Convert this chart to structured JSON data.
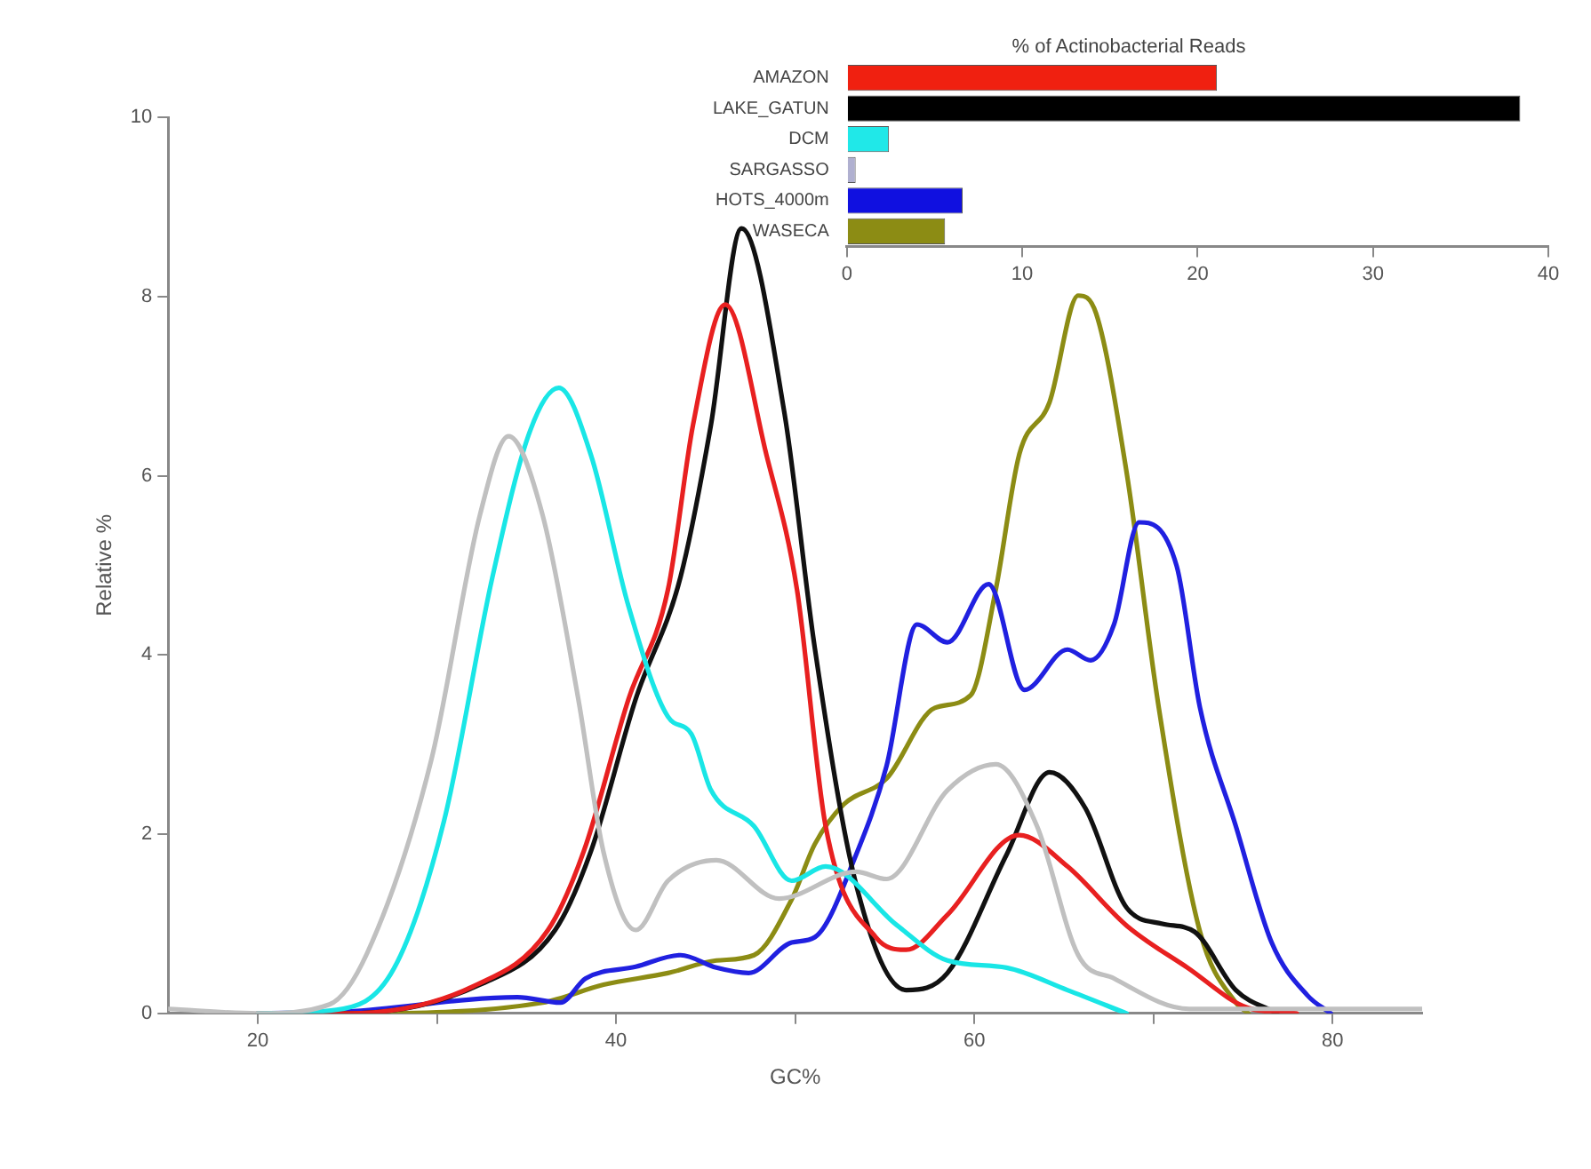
{
  "chart_data": [
    {
      "type": "line",
      "xlabel": "GC%",
      "ylabel": "Relative %",
      "xlim": [
        15,
        85
      ],
      "ylim": [
        0,
        10
      ],
      "xticks": [
        20,
        {
          "value": 30,
          "label": null
        },
        40,
        {
          "value": 50,
          "label": null
        },
        60,
        {
          "value": 70,
          "label": null
        },
        80
      ],
      "yticks": [
        0,
        2,
        4,
        6,
        8,
        10
      ],
      "series": [
        {
          "color": "#c0c0c0",
          "x": [
            15,
            20,
            24,
            26.1,
            29.7,
            32.4,
            34,
            35.9,
            37.9,
            39.3,
            41.1,
            42.9,
            45.6,
            49.1,
            53.4,
            55.1,
            58.5,
            61.2,
            63.5,
            65.8,
            67.8,
            72,
            85
          ],
          "values": [
            0.05,
            0,
            0.1,
            0.67,
            2.84,
            5.56,
            6.44,
            5.56,
            3.5,
            1.8,
            0.93,
            1.48,
            1.71,
            1.28,
            1.58,
            1.5,
            2.49,
            2.78,
            2.09,
            0.65,
            0.39,
            0.05,
            0.05
          ]
        },
        {
          "color": "#19e6e6",
          "x": [
            20,
            24.4,
            27.6,
            30.4,
            33.1,
            35.2,
            36.8,
            38.6,
            40.7,
            42.9,
            44.2,
            45.3,
            47.7,
            49.8,
            51.7,
            55.7,
            58.5,
            61.8,
            65.2,
            68.5
          ],
          "values": [
            0,
            0.04,
            0.5,
            2.15,
            4.87,
            6.5,
            6.98,
            6.23,
            4.54,
            3.31,
            3.12,
            2.49,
            2.09,
            1.48,
            1.64,
            0.98,
            0.59,
            0.51,
            0.26,
            0
          ]
        },
        {
          "color": "#e82020",
          "x": [
            20,
            25,
            32,
            36.2,
            38.2,
            40.7,
            42.9,
            44.3,
            46.1,
            48.4,
            50.1,
            51.7,
            54.5,
            56.2,
            58.5,
            62.5,
            65.2,
            68.5,
            71.9,
            75.3,
            78
          ],
          "values": [
            0,
            0,
            0.3,
            0.93,
            1.81,
            3.51,
            4.73,
            6.57,
            7.91,
            6.23,
            4.73,
            2.09,
            0.85,
            0.71,
            1.1,
            1.99,
            1.64,
            0.98,
            0.51,
            0.06,
            0
          ]
        },
        {
          "color": "#111111",
          "x": [
            20,
            25,
            32.4,
            36.6,
            38.6,
            41.1,
            43.6,
            45.3,
            47,
            49.4,
            51.1,
            53.4,
            56.2,
            58.5,
            61.8,
            64.2,
            66.2,
            68.5,
            70.5,
            72.3,
            74.6,
            76.9
          ],
          "values": [
            0,
            0,
            0.32,
            0.93,
            1.81,
            3.51,
            4.87,
            6.57,
            8.76,
            6.7,
            4.07,
            1.44,
            0.26,
            0.45,
            1.77,
            2.69,
            2.29,
            1.18,
            1,
            0.91,
            0.26,
            0
          ]
        },
        {
          "color": "#2020e0",
          "x": [
            20,
            25,
            34.5,
            36.9,
            38.3,
            41.1,
            43.6,
            45.6,
            47.4,
            49.8,
            51.1,
            53.4,
            55.1,
            56.8,
            58.5,
            60.8,
            62.8,
            65.2,
            66.5,
            67.8,
            69.2,
            71.3,
            72.6,
            74.6,
            76.6,
            78.6,
            79.9
          ],
          "values": [
            0,
            0.02,
            0.18,
            0.12,
            0.39,
            0.52,
            0.65,
            0.51,
            0.45,
            0.79,
            0.85,
            1.77,
            2.76,
            4.34,
            4.14,
            4.79,
            3.61,
            4.06,
            3.94,
            4.34,
            5.48,
            4.99,
            3.41,
            2.09,
            0.79,
            0.2,
            0
          ]
        },
        {
          "color": "#8c8c14",
          "x": [
            20,
            25,
            35.9,
            39.3,
            42.9,
            45.6,
            47.7,
            49.8,
            51.1,
            52.7,
            55.1,
            57.8,
            59.8,
            61.2,
            62.5,
            64.2,
            65.8,
            66.8,
            68.5,
            70.3,
            72.6,
            74.6,
            75.3
          ],
          "values": [
            0,
            0,
            0.12,
            0.32,
            0.45,
            0.59,
            0.65,
            1.27,
            1.89,
            2.33,
            2.62,
            3.41,
            3.55,
            4.73,
            6.23,
            6.82,
            8.01,
            7.81,
            6.04,
            3.41,
            0.91,
            0.12,
            0
          ]
        }
      ]
    },
    {
      "type": "bar",
      "orientation": "horizontal",
      "title": "% of Actinobacterial Reads",
      "categories": [
        "AMAZON",
        "LAKE_GATUN",
        "DCM",
        "SARGASSO",
        "HOTS_4000m",
        "WASECA"
      ],
      "values": [
        21.1,
        38.4,
        2.4,
        0.5,
        6.6,
        5.6
      ],
      "colors": [
        "#f02010",
        "#000000",
        "#20e8e8",
        "#b0b0d0",
        "#1010e0",
        "#8c8c14"
      ],
      "xlim": [
        0,
        40
      ],
      "xticks": [
        0,
        10,
        20,
        30,
        40
      ]
    }
  ]
}
